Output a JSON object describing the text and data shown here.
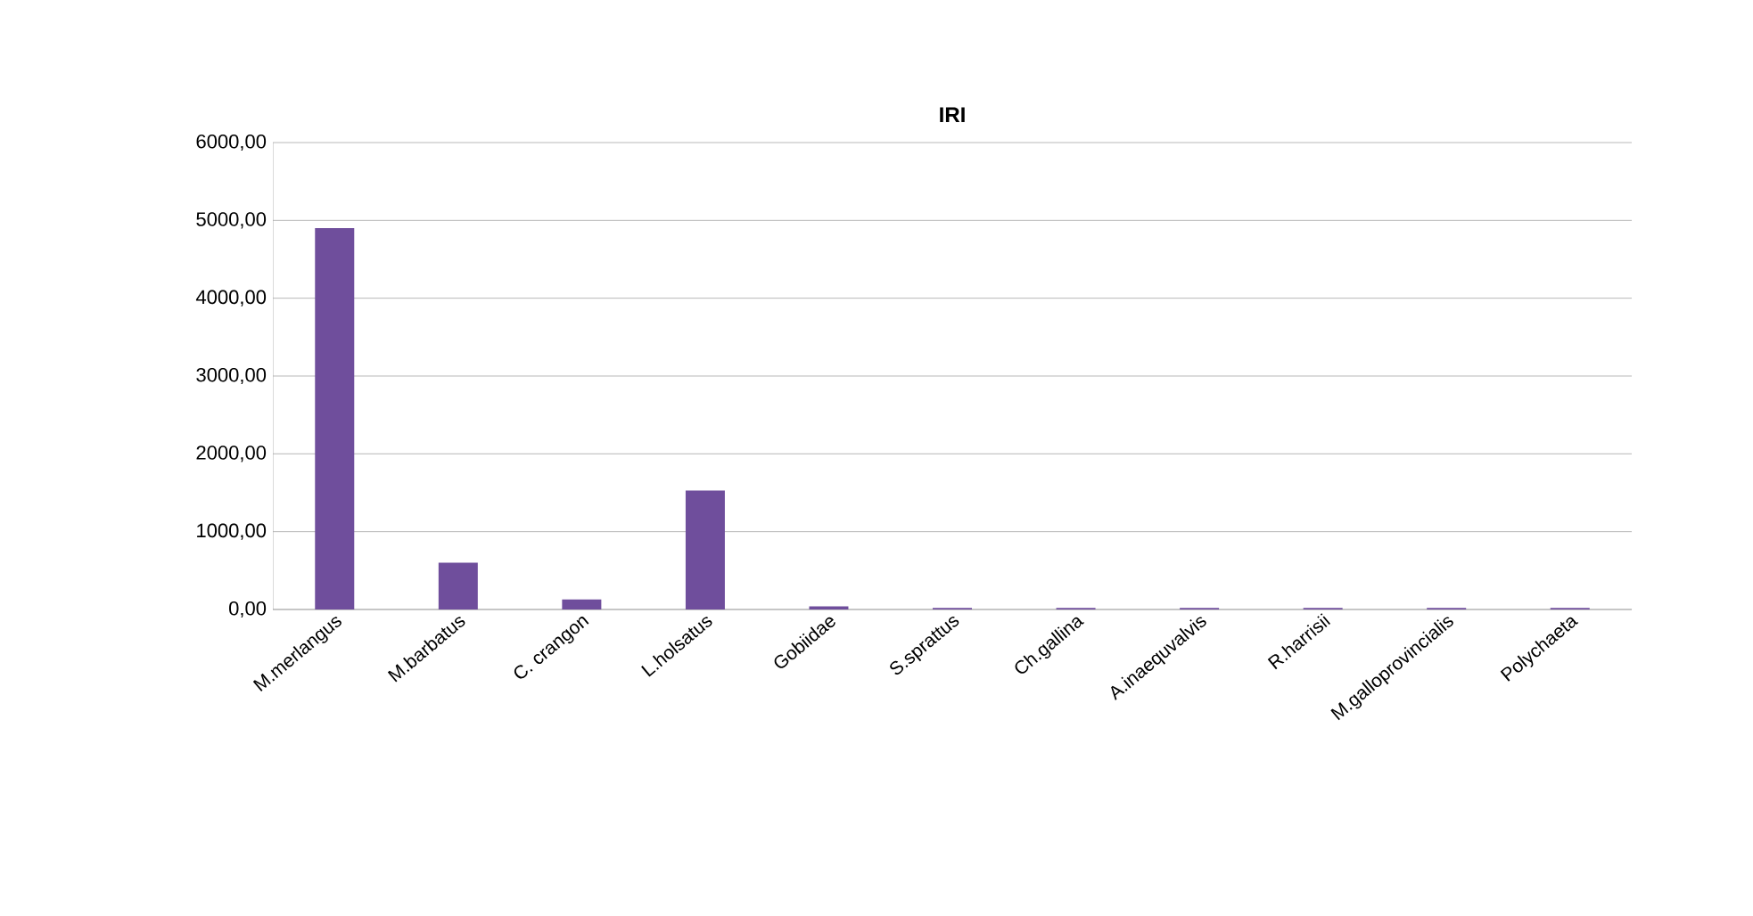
{
  "chart_data": {
    "type": "bar",
    "title": "IRI",
    "categories": [
      "M.merlangus",
      "M.barbatus",
      "C. crangon",
      "L.holsatus",
      "Gobiidae",
      "S.sprattus",
      "Ch.gallina",
      "A.inaequvalvis",
      "R.harrisii",
      "M.galloprovincialis",
      "Polychaeta"
    ],
    "values": [
      4900,
      600,
      130,
      1530,
      40,
      20,
      20,
      20,
      20,
      20,
      20
    ],
    "color": "#6f4e9c",
    "ylim": [
      0,
      6000
    ],
    "yticks": [
      {
        "value": 0,
        "label": "0,00"
      },
      {
        "value": 1000,
        "label": "1000,00"
      },
      {
        "value": 2000,
        "label": "2000,00"
      },
      {
        "value": 3000,
        "label": "3000,00"
      },
      {
        "value": 4000,
        "label": "4000,00"
      },
      {
        "value": 5000,
        "label": "5000,00"
      },
      {
        "value": 6000,
        "label": "6000,00"
      }
    ],
    "grid": "y"
  }
}
